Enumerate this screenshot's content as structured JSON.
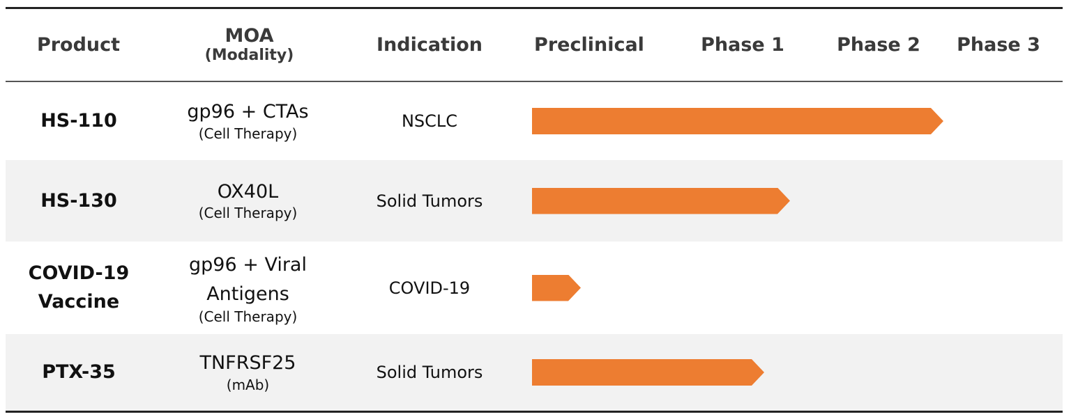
{
  "header": {
    "product": "Product",
    "moa": "MOA",
    "moa_sub": "(Modality)",
    "indication": "Indication",
    "phases": [
      "Preclinical",
      "Phase 1",
      "Phase 2",
      "Phase 3"
    ]
  },
  "rows": [
    {
      "product": "HS-110",
      "moa": "gp96 + CTAs",
      "moa_sub": "(Cell Therapy)",
      "indication": "NSCLC"
    },
    {
      "product": "HS-130",
      "moa": "OX40L",
      "moa_sub": "(Cell Therapy)",
      "indication": "Solid Tumors"
    },
    {
      "product": "COVID-19 Vaccine",
      "moa": "gp96 + Viral Antigens",
      "moa_sub": "(Cell Therapy)",
      "indication": "COVID-19"
    },
    {
      "product": "PTX-35",
      "moa": "TNFRSF25",
      "moa_sub": "(mAb)",
      "indication": "Solid Tumors"
    }
  ]
}
